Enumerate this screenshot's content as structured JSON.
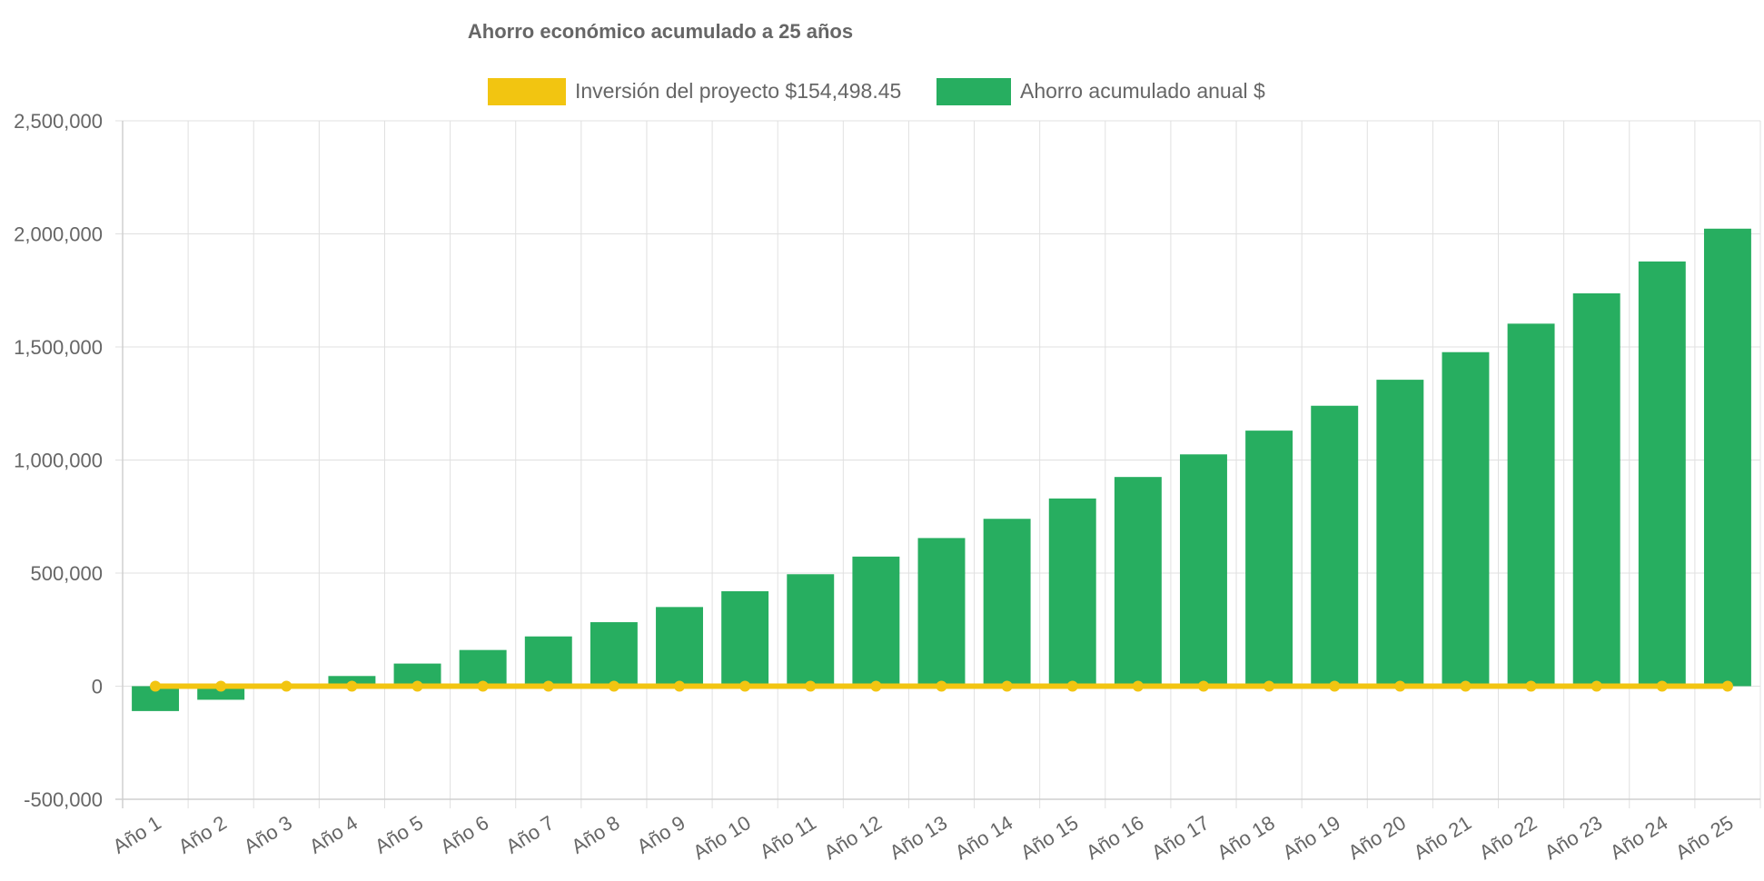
{
  "chart_data": {
    "type": "bar",
    "title": "Ahorro económico acumulado a 25 años",
    "categories": [
      "Año 1",
      "Año 2",
      "Año 3",
      "Año 4",
      "Año 5",
      "Año 6",
      "Año 7",
      "Año 8",
      "Año 9",
      "Año 10",
      "Año 11",
      "Año 12",
      "Año 13",
      "Año 14",
      "Año 15",
      "Año 16",
      "Año 17",
      "Año 18",
      "Año 19",
      "Año 20",
      "Año 21",
      "Año 22",
      "Año 23",
      "Año 24",
      "Año 25"
    ],
    "series": [
      {
        "name": "Inversión del proyecto $154,498.45",
        "type": "line",
        "color": "#f2c511",
        "values": [
          0,
          0,
          0,
          0,
          0,
          0,
          0,
          0,
          0,
          0,
          0,
          0,
          0,
          0,
          0,
          0,
          0,
          0,
          0,
          0,
          0,
          0,
          0,
          0,
          0
        ]
      },
      {
        "name": "Ahorro acumulado anual $",
        "type": "bar",
        "color": "#27ae60",
        "values": [
          -110000,
          -60000,
          -5000,
          45000,
          100000,
          160000,
          220000,
          283000,
          350000,
          420000,
          495000,
          573000,
          655000,
          740000,
          830000,
          925000,
          1025000,
          1130000,
          1240000,
          1355000,
          1477000,
          1603000,
          1737000,
          1878000,
          2023000
        ]
      }
    ],
    "ylim": [
      -500000,
      2500000
    ],
    "yticks": [
      -500000,
      0,
      500000,
      1000000,
      1500000,
      2000000,
      2500000
    ],
    "ytick_labels": [
      "-500,000",
      "0",
      "500,000",
      "1,000,000",
      "1,500,000",
      "2,000,000",
      "2,500,000"
    ],
    "xlabel": "",
    "ylabel": "",
    "grid": true,
    "legend_position": "top-center"
  }
}
